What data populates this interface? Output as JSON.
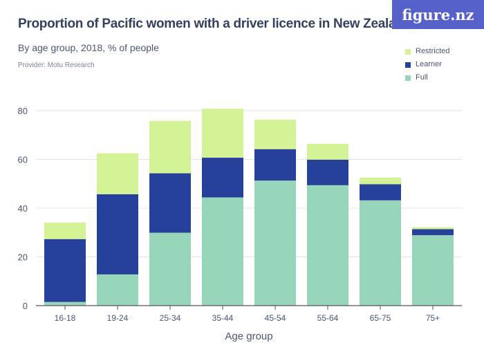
{
  "header": {
    "title": "Proportion of Pacific women with a driver licence in New Zealand",
    "subtitle": "By age group, 2018, % of people",
    "provider": "Provider: Motu Research",
    "logo": "figure.nz"
  },
  "chart_data": {
    "type": "bar",
    "stacked": true,
    "xlabel": "Age group",
    "ylabel": "",
    "ylim": [
      0,
      80
    ],
    "yticks": [
      0,
      20,
      40,
      60,
      80
    ],
    "grid": true,
    "legend_position": "top-right",
    "categories": [
      "16-18",
      "19-24",
      "25-34",
      "35-44",
      "45-54",
      "55-64",
      "65-75",
      "75+"
    ],
    "series": [
      {
        "name": "Full",
        "color": "#97d6bb",
        "values": [
          1.5,
          12.8,
          29.9,
          44.4,
          51.3,
          49.4,
          43.2,
          28.9
        ]
      },
      {
        "name": "Learner",
        "color": "#27419b",
        "values": [
          25.8,
          32.9,
          24.4,
          16.3,
          12.9,
          10.5,
          6.6,
          2.5
        ]
      },
      {
        "name": "Restricted",
        "color": "#d4f396",
        "values": [
          6.8,
          16.8,
          21.5,
          20.1,
          12.1,
          6.5,
          2.7,
          0.8
        ]
      }
    ]
  }
}
